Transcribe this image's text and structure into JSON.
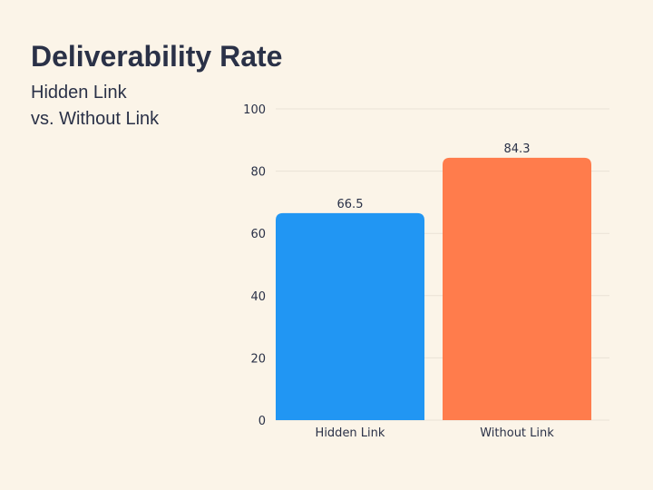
{
  "chart_data": {
    "type": "bar",
    "title": "Deliverability Rate",
    "subtitle_lines": [
      "Hidden Link",
      "vs. Without Link"
    ],
    "categories": [
      "Hidden Link",
      "Without Link"
    ],
    "values": [
      66.5,
      84.3
    ],
    "data_labels": [
      "66.5",
      "84.3"
    ],
    "colors": [
      "#2196F3",
      "#FF7C4C"
    ],
    "ylim": [
      0,
      100
    ],
    "yticks": [
      0,
      20,
      40,
      60,
      80,
      100
    ],
    "xlabel": "",
    "ylabel": "",
    "grid": true,
    "legend": "none"
  },
  "colors": {
    "background": "#FBF4E8",
    "text": "#2A3147",
    "gridline": "#E9E2D6"
  }
}
